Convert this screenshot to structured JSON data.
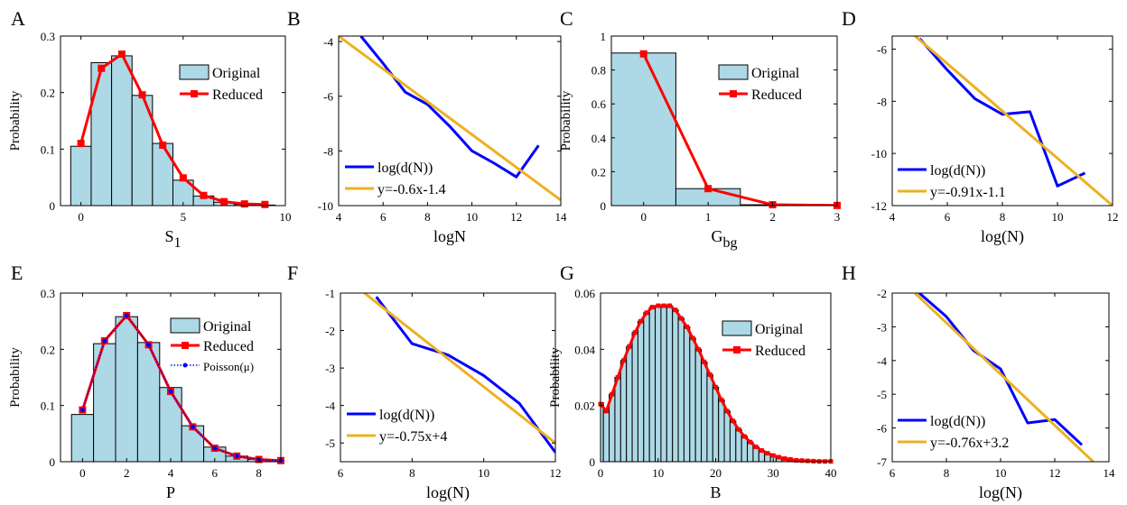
{
  "colors": {
    "bar_fill": "#ADD8E6",
    "bar_edge": "#000000",
    "reduced": "#FF0000",
    "log_line": "#0000FF",
    "fit_line": "#EDB120",
    "poisson": "#0000FF"
  },
  "chart_data": [
    {
      "panel": "A",
      "type": "bar",
      "xlabel": "S",
      "xlabel_sub": "1",
      "ylabel": "Probability",
      "xlim": [
        -1,
        10
      ],
      "ylim": [
        0,
        0.3
      ],
      "xticks": [
        0,
        5,
        10
      ],
      "yticks": [
        0,
        0.1,
        0.2,
        0.3
      ],
      "categories": [
        0,
        1,
        2,
        3,
        4,
        5,
        6,
        7,
        8,
        9
      ],
      "series": [
        {
          "name": "Original",
          "kind": "bar",
          "values": [
            0.105,
            0.253,
            0.265,
            0.195,
            0.11,
            0.045,
            0.017,
            0.006,
            0.002,
            0.001
          ]
        },
        {
          "name": "Reduced",
          "kind": "line",
          "values": [
            0.11,
            0.243,
            0.268,
            0.196,
            0.107,
            0.049,
            0.018,
            0.007,
            0.003,
            0.002
          ]
        }
      ],
      "legend": "top-right"
    },
    {
      "panel": "B",
      "type": "line",
      "xlabel": "logN",
      "ylabel": "",
      "xlim": [
        4,
        14
      ],
      "ylim": [
        -10,
        -3.8
      ],
      "xticks": [
        4,
        6,
        8,
        10,
        12,
        14
      ],
      "yticks": [
        -10,
        -8,
        -6,
        -4
      ],
      "series": [
        {
          "name": "log(d(N))",
          "kind": "line",
          "x": [
            5,
            6,
            7,
            8,
            9,
            10,
            11,
            12,
            13
          ],
          "y": [
            -3.8,
            -4.8,
            -5.85,
            -6.3,
            -7.1,
            -8.0,
            -8.45,
            -8.95,
            -7.8
          ]
        },
        {
          "name": "y=-0.6x-1.4",
          "kind": "fit",
          "x": [
            4,
            14
          ],
          "y": [
            -3.8,
            -9.8
          ]
        }
      ],
      "legend": "bottom-left"
    },
    {
      "panel": "C",
      "type": "bar",
      "xlabel": "G",
      "xlabel_sub": "bg",
      "ylabel": "Probability",
      "xlim": [
        -0.5,
        3
      ],
      "ylim": [
        0,
        1
      ],
      "xticks": [
        0,
        1,
        2,
        3
      ],
      "yticks": [
        0,
        0.2,
        0.4,
        0.6,
        0.8,
        1
      ],
      "categories": [
        0,
        1,
        2,
        3
      ],
      "series": [
        {
          "name": "Original",
          "kind": "bar",
          "values": [
            0.9,
            0.1,
            0.005,
            0.0
          ]
        },
        {
          "name": "Reduced",
          "kind": "line",
          "values": [
            0.895,
            0.1,
            0.005,
            0.001
          ]
        }
      ],
      "legend": "top-right"
    },
    {
      "panel": "D",
      "type": "line",
      "xlabel": "log(N)",
      "ylabel": "",
      "xlim": [
        4,
        12
      ],
      "ylim": [
        -12,
        -5.5
      ],
      "xticks": [
        4,
        6,
        8,
        10,
        12
      ],
      "yticks": [
        -12,
        -10,
        -8,
        -6
      ],
      "series": [
        {
          "name": "log(d(N))",
          "kind": "line",
          "x": [
            5,
            6,
            7,
            8,
            9,
            10,
            11
          ],
          "y": [
            -5.6,
            -6.8,
            -7.9,
            -8.5,
            -8.4,
            -11.25,
            -10.75
          ]
        },
        {
          "name": "y=-0.91x-1.1",
          "kind": "fit",
          "x": [
            4.8,
            12
          ],
          "y": [
            -5.47,
            -12.0
          ]
        }
      ],
      "legend": "bottom-left"
    },
    {
      "panel": "E",
      "type": "bar",
      "xlabel": "P",
      "ylabel": "Probability",
      "xlim": [
        -1,
        9
      ],
      "ylim": [
        0,
        0.3
      ],
      "xticks": [
        0,
        2,
        4,
        6,
        8
      ],
      "yticks": [
        0,
        0.1,
        0.2,
        0.3
      ],
      "categories": [
        0,
        1,
        2,
        3,
        4,
        5,
        6,
        7,
        8,
        9
      ],
      "series": [
        {
          "name": "Original",
          "kind": "bar",
          "values": [
            0.084,
            0.21,
            0.258,
            0.212,
            0.132,
            0.064,
            0.026,
            0.01,
            0.004,
            0.002
          ]
        },
        {
          "name": "Reduced",
          "kind": "line",
          "values": [
            0.092,
            0.215,
            0.26,
            0.208,
            0.125,
            0.062,
            0.024,
            0.01,
            0.004,
            0.002
          ]
        },
        {
          "name": "Poisson(μ)",
          "kind": "dotted",
          "values": [
            0.092,
            0.215,
            0.26,
            0.208,
            0.125,
            0.062,
            0.024,
            0.01,
            0.004,
            0.002
          ]
        }
      ],
      "legend": "top-right"
    },
    {
      "panel": "F",
      "type": "line",
      "xlabel": "log(N)",
      "ylabel": "",
      "xlim": [
        6,
        12
      ],
      "ylim": [
        -5.5,
        -1
      ],
      "xticks": [
        6,
        8,
        10,
        12
      ],
      "yticks": [
        -5,
        -4,
        -3,
        -2,
        -1
      ],
      "series": [
        {
          "name": "log(d(N))",
          "kind": "line",
          "x": [
            7,
            8,
            9,
            10,
            11,
            12
          ],
          "y": [
            -1.1,
            -2.35,
            -2.65,
            -3.2,
            -3.95,
            -5.25
          ]
        },
        {
          "name": "y=-0.75x+4",
          "kind": "fit",
          "x": [
            6.67,
            12
          ],
          "y": [
            -1.0,
            -5.0
          ]
        }
      ],
      "legend": "bottom-left"
    },
    {
      "panel": "G",
      "type": "bar",
      "xlabel": "B",
      "ylabel": "Probability",
      "xlim": [
        0,
        40
      ],
      "ylim": [
        0,
        0.06
      ],
      "xticks": [
        0,
        10,
        20,
        30,
        40
      ],
      "yticks": [
        0,
        0.02,
        0.04,
        0.06
      ],
      "categories": [
        0,
        1,
        2,
        3,
        4,
        5,
        6,
        7,
        8,
        9,
        10,
        11,
        12,
        13,
        14,
        15,
        16,
        17,
        18,
        19,
        20,
        21,
        22,
        23,
        24,
        25,
        26,
        27,
        28,
        29,
        30,
        31,
        32,
        33,
        34,
        35,
        36,
        37,
        38,
        39,
        40
      ],
      "series": [
        {
          "name": "Original",
          "kind": "bar",
          "values": [
            0.021,
            0.018,
            0.024,
            0.03,
            0.036,
            0.041,
            0.046,
            0.05,
            0.053,
            0.055,
            0.0555,
            0.0555,
            0.0555,
            0.054,
            0.051,
            0.048,
            0.044,
            0.04,
            0.0355,
            0.031,
            0.0265,
            0.022,
            0.018,
            0.0145,
            0.0115,
            0.009,
            0.007,
            0.0053,
            0.004,
            0.003,
            0.0022,
            0.0016,
            0.0011,
            0.0008,
            0.0005,
            0.0004,
            0.0003,
            0.0002,
            0.0001,
            0.0001,
            0.0001
          ]
        },
        {
          "name": "Reduced",
          "kind": "line",
          "values": [
            0.0205,
            0.018,
            0.024,
            0.03,
            0.036,
            0.041,
            0.046,
            0.05,
            0.053,
            0.055,
            0.0555,
            0.0555,
            0.0555,
            0.054,
            0.051,
            0.048,
            0.044,
            0.04,
            0.0355,
            0.031,
            0.0265,
            0.022,
            0.018,
            0.0145,
            0.0115,
            0.009,
            0.007,
            0.0053,
            0.004,
            0.003,
            0.0022,
            0.0016,
            0.0011,
            0.0008,
            0.0005,
            0.0004,
            0.0003,
            0.0002,
            0.0001,
            0.0001,
            0.0001
          ]
        }
      ],
      "legend": "top-right"
    },
    {
      "panel": "H",
      "type": "line",
      "xlabel": "log(N)",
      "ylabel": "",
      "xlim": [
        6,
        14
      ],
      "ylim": [
        -7,
        -2
      ],
      "xticks": [
        6,
        8,
        10,
        12,
        14
      ],
      "yticks": [
        -7,
        -6,
        -5,
        -4,
        -3,
        -2
      ],
      "series": [
        {
          "name": "log(d(N))",
          "kind": "line",
          "x": [
            7,
            8,
            9,
            10,
            11,
            12,
            13
          ],
          "y": [
            -2.0,
            -2.7,
            -3.7,
            -4.25,
            -5.85,
            -5.75,
            -6.5
          ]
        },
        {
          "name": "y=-0.76x+3.2",
          "kind": "fit",
          "x": [
            6.84,
            13.42
          ],
          "y": [
            -2.0,
            -7.0
          ]
        }
      ],
      "legend": "bottom-left"
    }
  ]
}
